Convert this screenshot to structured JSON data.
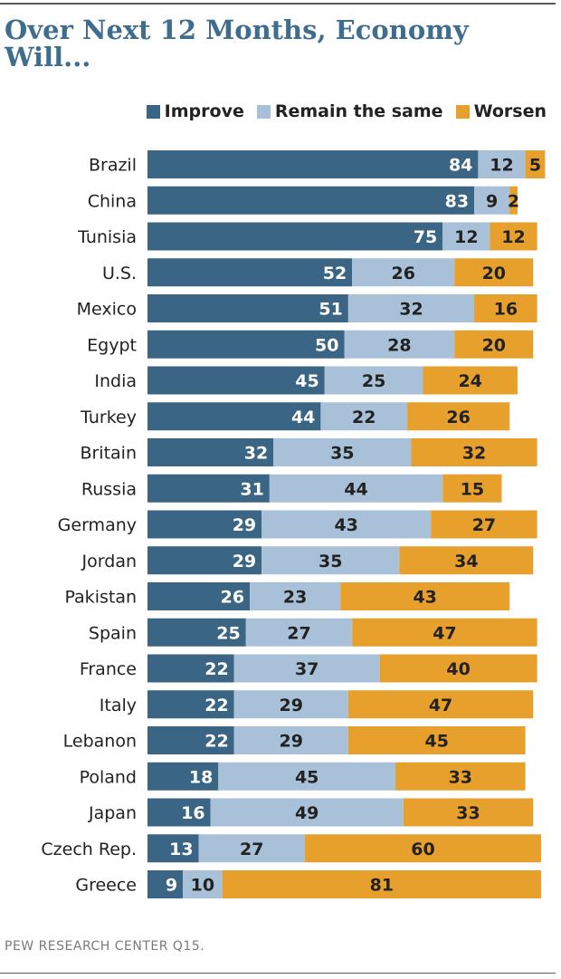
{
  "title": "Over Next 12 Months, Economy Will...",
  "source": "PEW RESEARCH CENTER Q15.",
  "colors": {
    "improve": "#3b6584",
    "same": "#a9c1d8",
    "worsen": "#e8a02c",
    "title": "#3f6d8e"
  },
  "chart_data": {
    "type": "bar",
    "orientation": "horizontal",
    "stacked": true,
    "title": "Over Next 12 Months, Economy Will...",
    "legend_position": "top-right",
    "grid": false,
    "categories": [
      "Brazil",
      "China",
      "Tunisia",
      "U.S.",
      "Mexico",
      "Egypt",
      "India",
      "Turkey",
      "Britain",
      "Russia",
      "Germany",
      "Jordan",
      "Pakistan",
      "Spain",
      "France",
      "Italy",
      "Lebanon",
      "Poland",
      "Japan",
      "Czech Rep.",
      "Greece"
    ],
    "series": [
      {
        "name": "Improve",
        "color": "#3b6584",
        "values": [
          84,
          83,
          75,
          52,
          51,
          50,
          45,
          44,
          32,
          31,
          29,
          29,
          26,
          25,
          22,
          22,
          22,
          18,
          16,
          13,
          9
        ]
      },
      {
        "name": "Remain the same",
        "color": "#a9c1d8",
        "values": [
          12,
          9,
          12,
          26,
          32,
          28,
          25,
          22,
          35,
          44,
          43,
          35,
          23,
          27,
          37,
          29,
          29,
          45,
          49,
          27,
          10
        ]
      },
      {
        "name": "Worsen",
        "color": "#e8a02c",
        "values": [
          5,
          2,
          12,
          20,
          16,
          20,
          24,
          26,
          32,
          15,
          27,
          34,
          43,
          47,
          40,
          47,
          45,
          33,
          33,
          60,
          81
        ]
      }
    ]
  }
}
